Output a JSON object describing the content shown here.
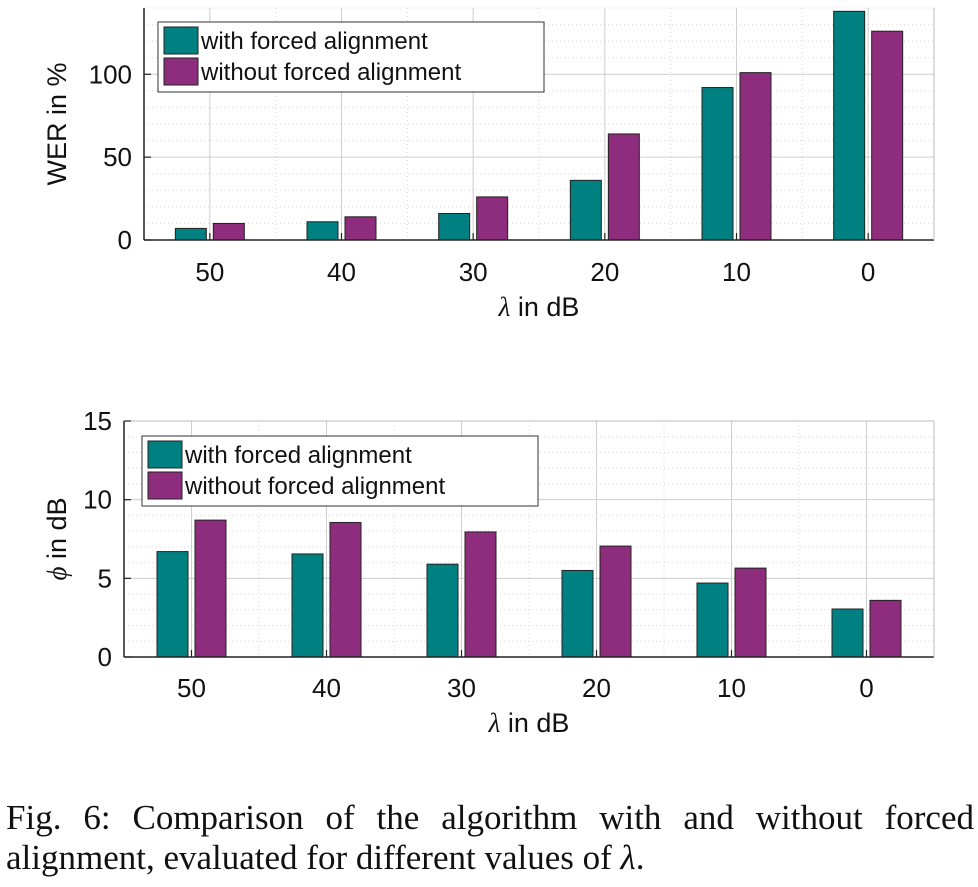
{
  "colors": {
    "with": "#008080",
    "without": "#8E2C7D"
  },
  "chart_data": [
    {
      "type": "bar",
      "categories": [
        "50",
        "40",
        "30",
        "20",
        "10",
        "0"
      ],
      "series": [
        {
          "name": "with forced alignment",
          "values": [
            7,
            11,
            16,
            36,
            92,
            138
          ]
        },
        {
          "name": "without forced alignment",
          "values": [
            10,
            14,
            26,
            64,
            101,
            126
          ]
        }
      ],
      "xlabel_var": "λ",
      "xlabel_rest": " in dB",
      "ylabel": "WER in %",
      "yticks": [
        "0",
        "50",
        "100"
      ],
      "ylim": [
        0,
        140
      ],
      "grid": true,
      "legend_position": "top-left"
    },
    {
      "type": "bar",
      "categories": [
        "50",
        "40",
        "30",
        "20",
        "10",
        "0"
      ],
      "series": [
        {
          "name": "with forced alignment",
          "values": [
            6.7,
            6.55,
            5.9,
            5.5,
            4.7,
            3.05
          ]
        },
        {
          "name": "without forced alignment",
          "values": [
            8.7,
            8.55,
            7.95,
            7.05,
            5.65,
            3.6
          ]
        }
      ],
      "xlabel_var": "λ",
      "xlabel_rest": " in dB",
      "ylabel_var": "ϕ",
      "ylabel_rest": " in dB",
      "yticks": [
        "0",
        "5",
        "10",
        "15"
      ],
      "ylim": [
        0,
        15
      ],
      "grid": true,
      "legend_position": "top-left"
    }
  ],
  "caption": {
    "label": "Fig. 6:",
    "text": "Comparison of the algorithm with and without forced alignment, evaluated for different values of",
    "var": "λ",
    "end": "."
  }
}
